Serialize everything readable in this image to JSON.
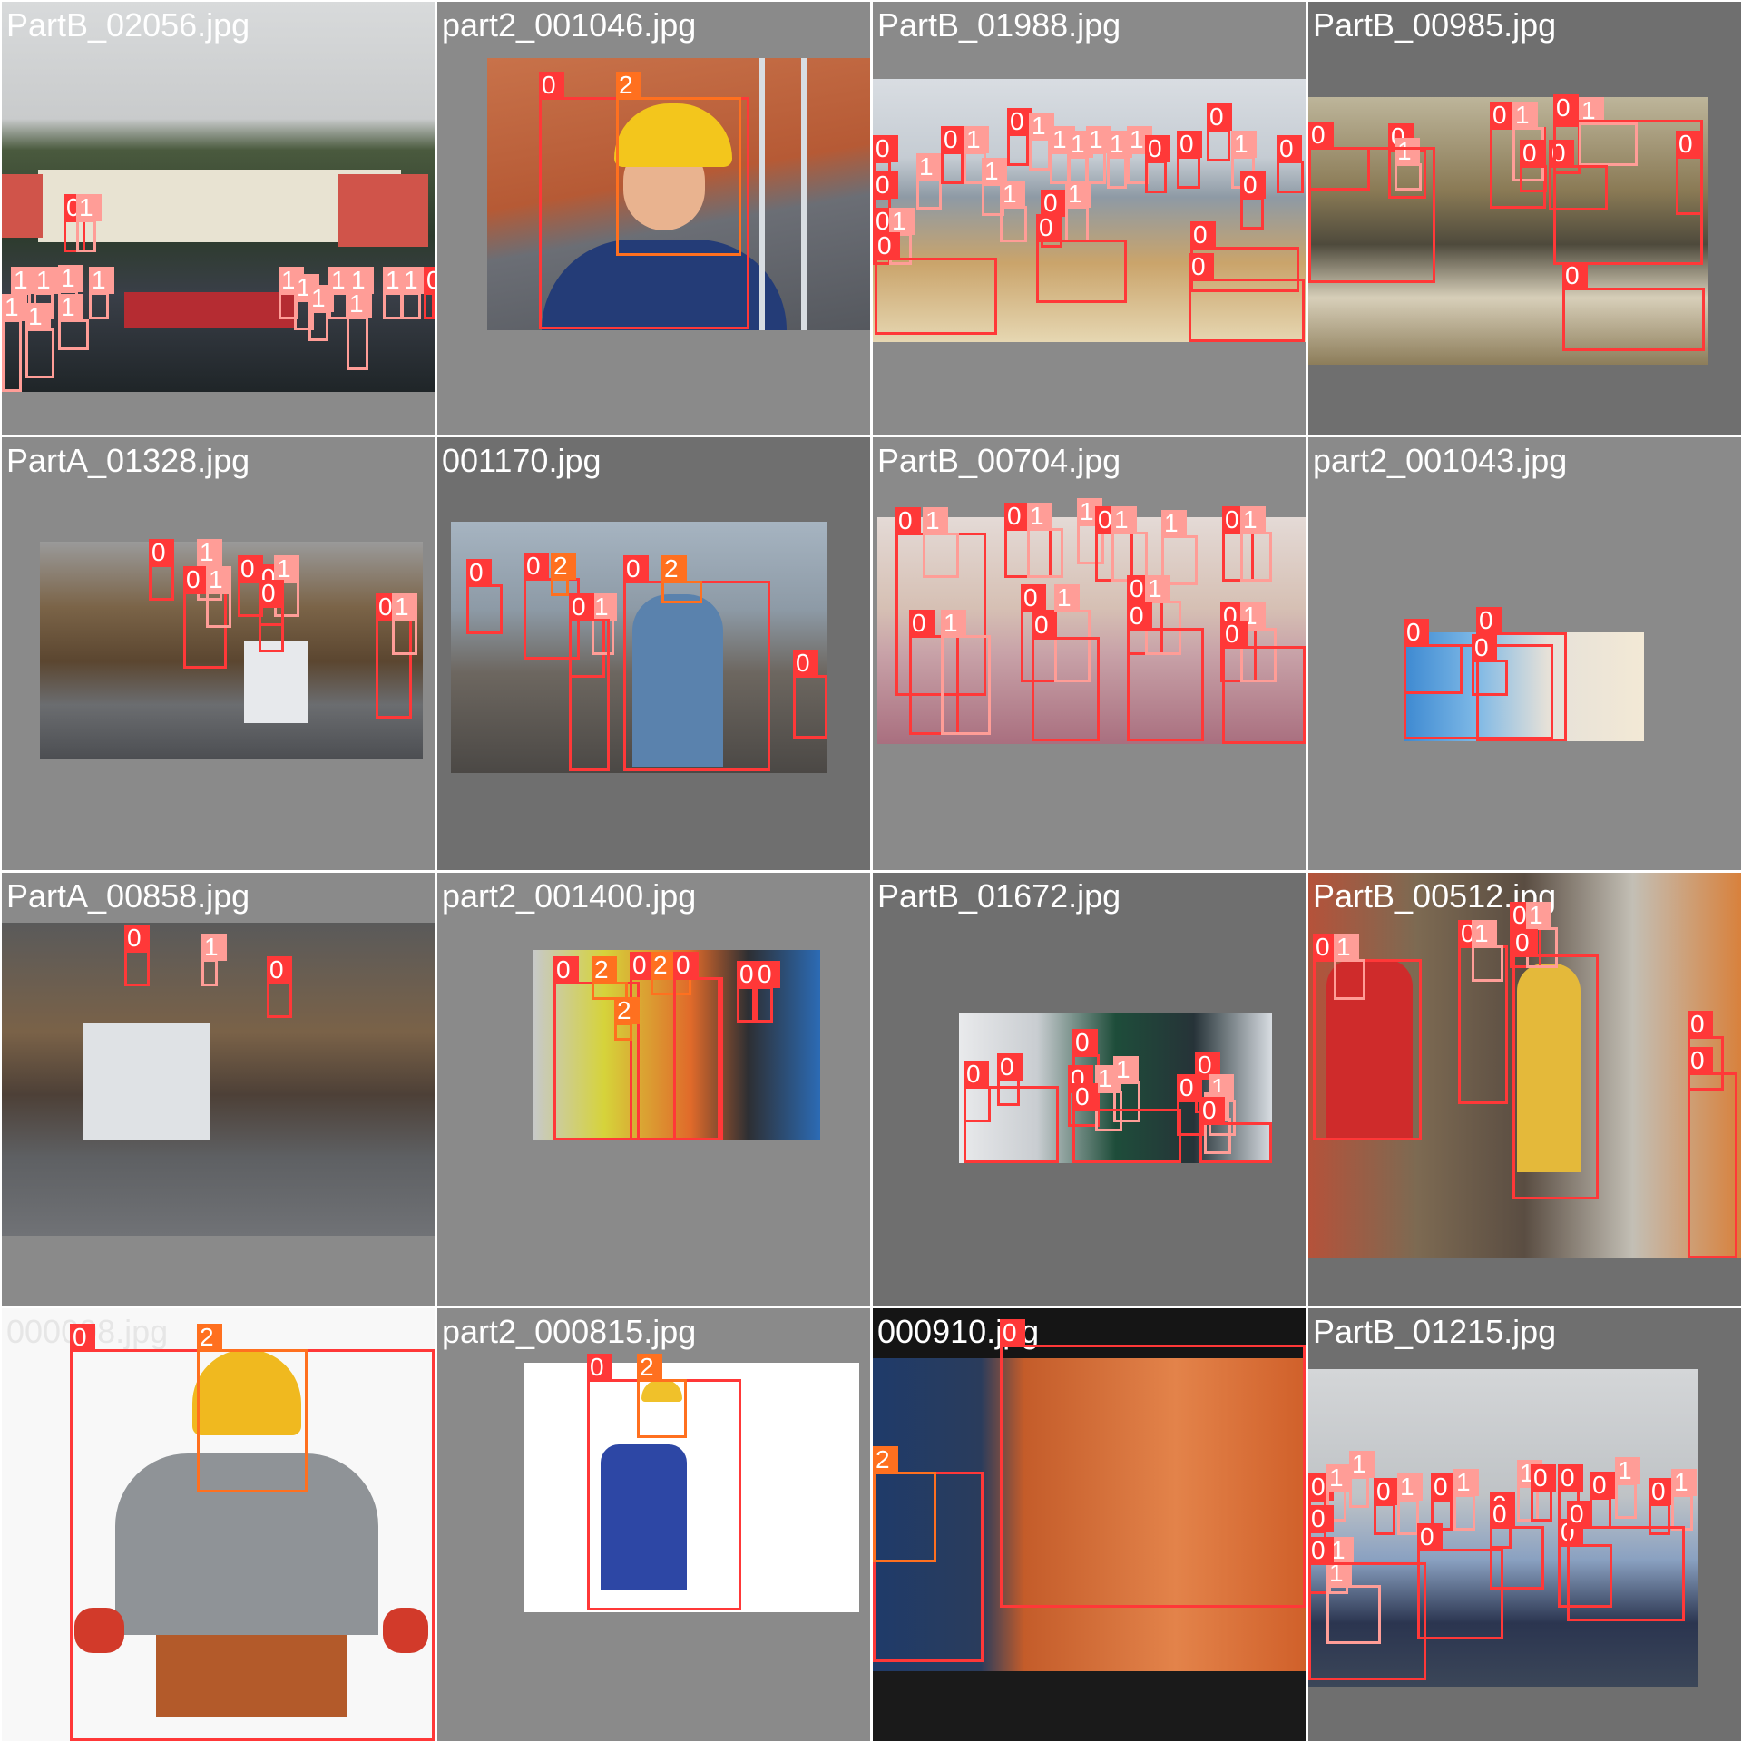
{
  "grid": {
    "background": "#ffffff",
    "class_colors": {
      "0": "#ff3838",
      "1": "#ff9d97",
      "2": "#ff701f"
    },
    "tiles": [
      {
        "filename": "PartB_02056.jpg",
        "tile_bg": "#8a8a8a",
        "photo_bg": "#4a4f4f",
        "scene": "auditorium"
      },
      {
        "filename": "part2_001046.jpg",
        "tile_bg": "#8a8a8a",
        "photo_bg": "#c8724a",
        "scene": "worker-hardhat-roof"
      },
      {
        "filename": "PartB_01988.jpg",
        "tile_bg": "#8a8a8a",
        "photo_bg": "#b9c3cf",
        "scene": "classroom"
      },
      {
        "filename": "PartB_00985.jpg",
        "tile_bg": "#6f6f6f",
        "photo_bg": "#6a5a3c",
        "scene": "study-room"
      },
      {
        "filename": "PartA_01328.jpg",
        "tile_bg": "#8a8a8a",
        "photo_bg": "#6b6b6b",
        "scene": "cctv-lecture-hall"
      },
      {
        "filename": "001170.jpg",
        "tile_bg": "#6f6f6f",
        "photo_bg": "#7d8792",
        "scene": "construction-site"
      },
      {
        "filename": "PartB_00704.jpg",
        "tile_bg": "#8a8a8a",
        "photo_bg": "#d9c9c2",
        "scene": "group-photo"
      },
      {
        "filename": "part2_001043.jpg",
        "tile_bg": "#8a8a8a",
        "photo_bg": "#f2eee6",
        "scene": "workers-pointing"
      },
      {
        "filename": "PartA_00858.jpg",
        "tile_bg": "#8a8a8a",
        "photo_bg": "#5f5f5f",
        "scene": "cctv-lecture-hall-2"
      },
      {
        "filename": "part2_001400.jpg",
        "tile_bg": "#8a8a8a",
        "photo_bg": "#2c3a4a",
        "scene": "workers-vests"
      },
      {
        "filename": "PartB_01672.jpg",
        "tile_bg": "#6f6f6f",
        "photo_bg": "#2b2f32",
        "scene": "dark-classroom"
      },
      {
        "filename": "PartB_00512.jpg",
        "tile_bg": "#6f6f6f",
        "photo_bg": "#6e5a48",
        "scene": "canteen"
      },
      {
        "filename": "000008.jpg",
        "tile_bg": "#ffffff",
        "photo_bg": "#ffffff",
        "scene": "worker-yellow-helmet"
      },
      {
        "filename": "part2_000815.jpg",
        "tile_bg": "#8a8a8a",
        "photo_bg": "#ffffff",
        "scene": "worker-overalls"
      },
      {
        "filename": "000910.jpg",
        "tile_bg": "#111111",
        "photo_bg": "#1d1a18",
        "scene": "poster"
      },
      {
        "filename": "PartB_01215.jpg",
        "tile_bg": "#6f6f6f",
        "photo_bg": "#c9ccd0",
        "scene": "kids-classroom"
      }
    ]
  }
}
